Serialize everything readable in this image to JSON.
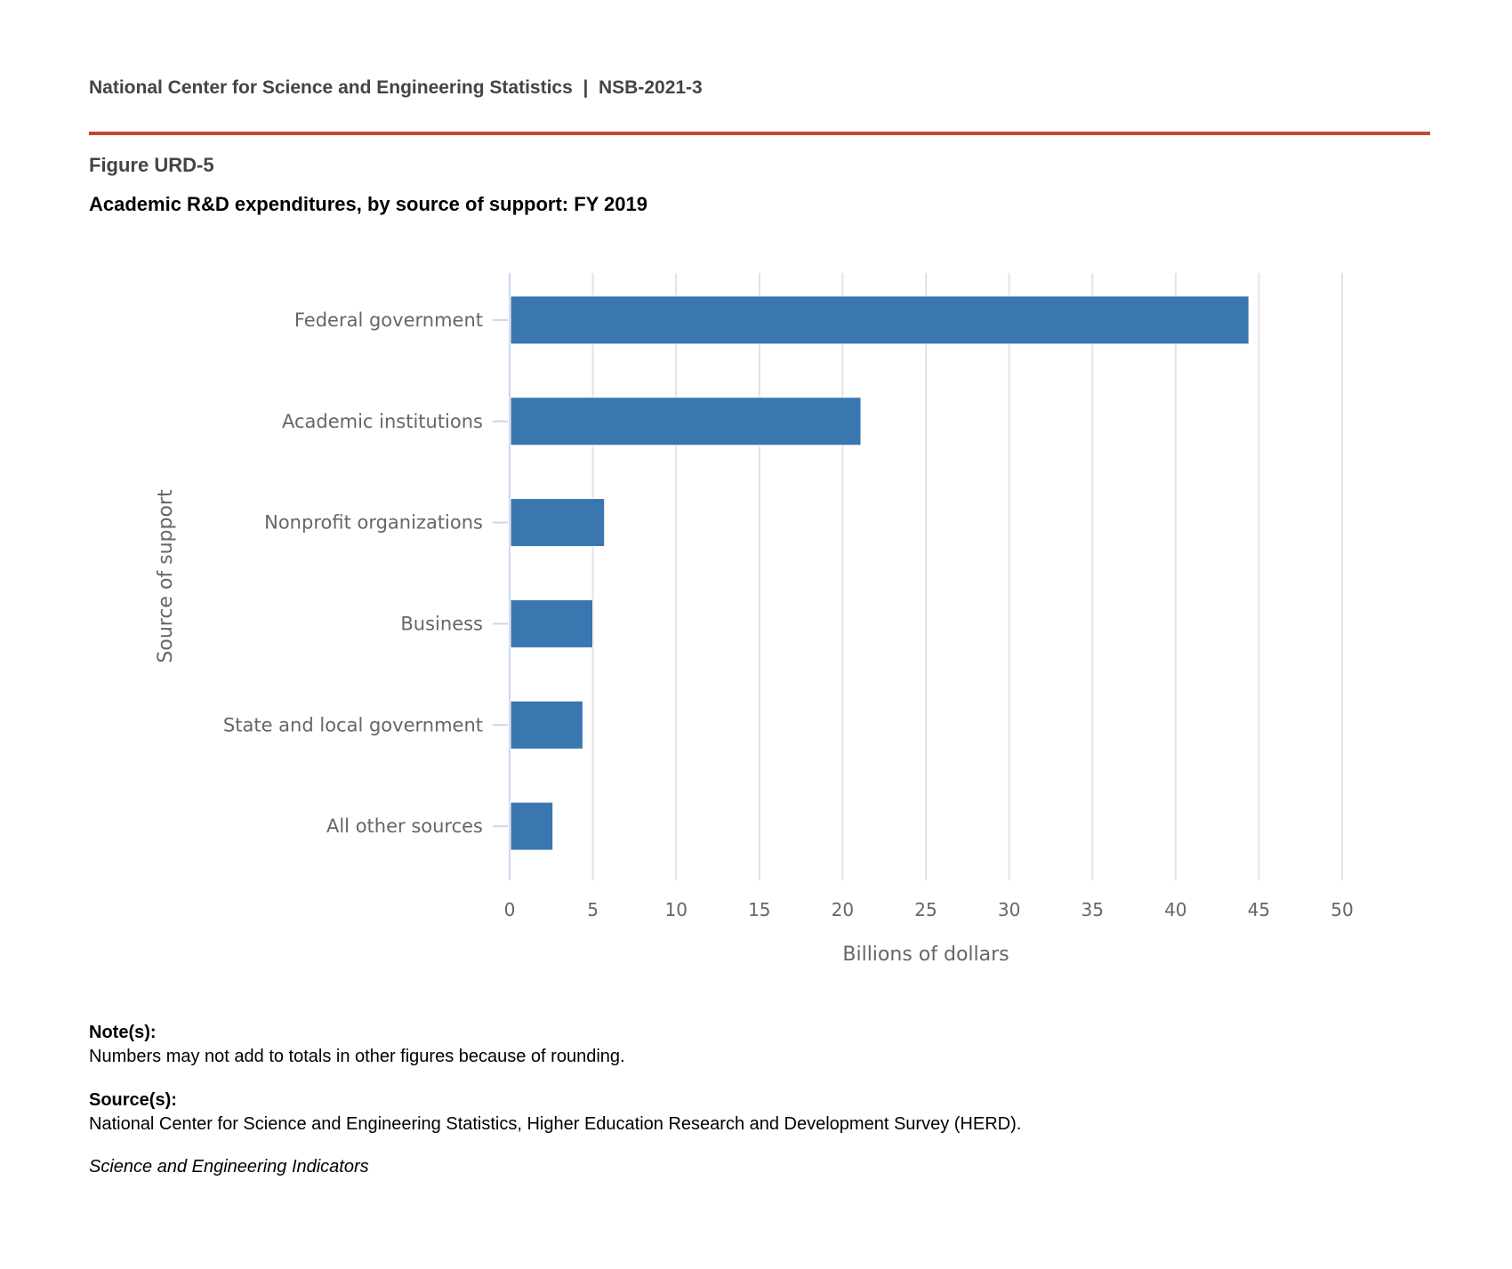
{
  "header": {
    "text": "National Center for Science and Engineering Statistics  |  NSB-2021-3"
  },
  "figure_label": "Figure URD-5",
  "title": "Academic R&D expenditures, by source of support: FY 2019",
  "chart_data": {
    "type": "bar",
    "orientation": "horizontal",
    "title": "Academic R&D expenditures, by source of support: FY 2019",
    "categories": [
      "Federal government",
      "Academic institutions",
      "Nonprofit organizations",
      "Business",
      "State and local government",
      "All other sources"
    ],
    "values": [
      44.4,
      21.1,
      5.7,
      5.0,
      4.4,
      2.6
    ],
    "xlabel": "Billions of dollars",
    "ylabel": "Source of support",
    "xlim": [
      0,
      50
    ],
    "xticks": [
      0,
      5,
      10,
      15,
      20,
      25,
      30,
      35,
      40,
      45,
      50
    ],
    "grid": true,
    "bar_color": "#3a76b0"
  },
  "notes": {
    "note_heading": "Note(s):",
    "note_text": "Numbers may not add to totals in other figures because of rounding.",
    "source_heading": "Source(s):",
    "source_text": "National Center for Science and Engineering Statistics, Higher Education Research and Development Survey (HERD).",
    "publication": "Science and Engineering Indicators"
  }
}
